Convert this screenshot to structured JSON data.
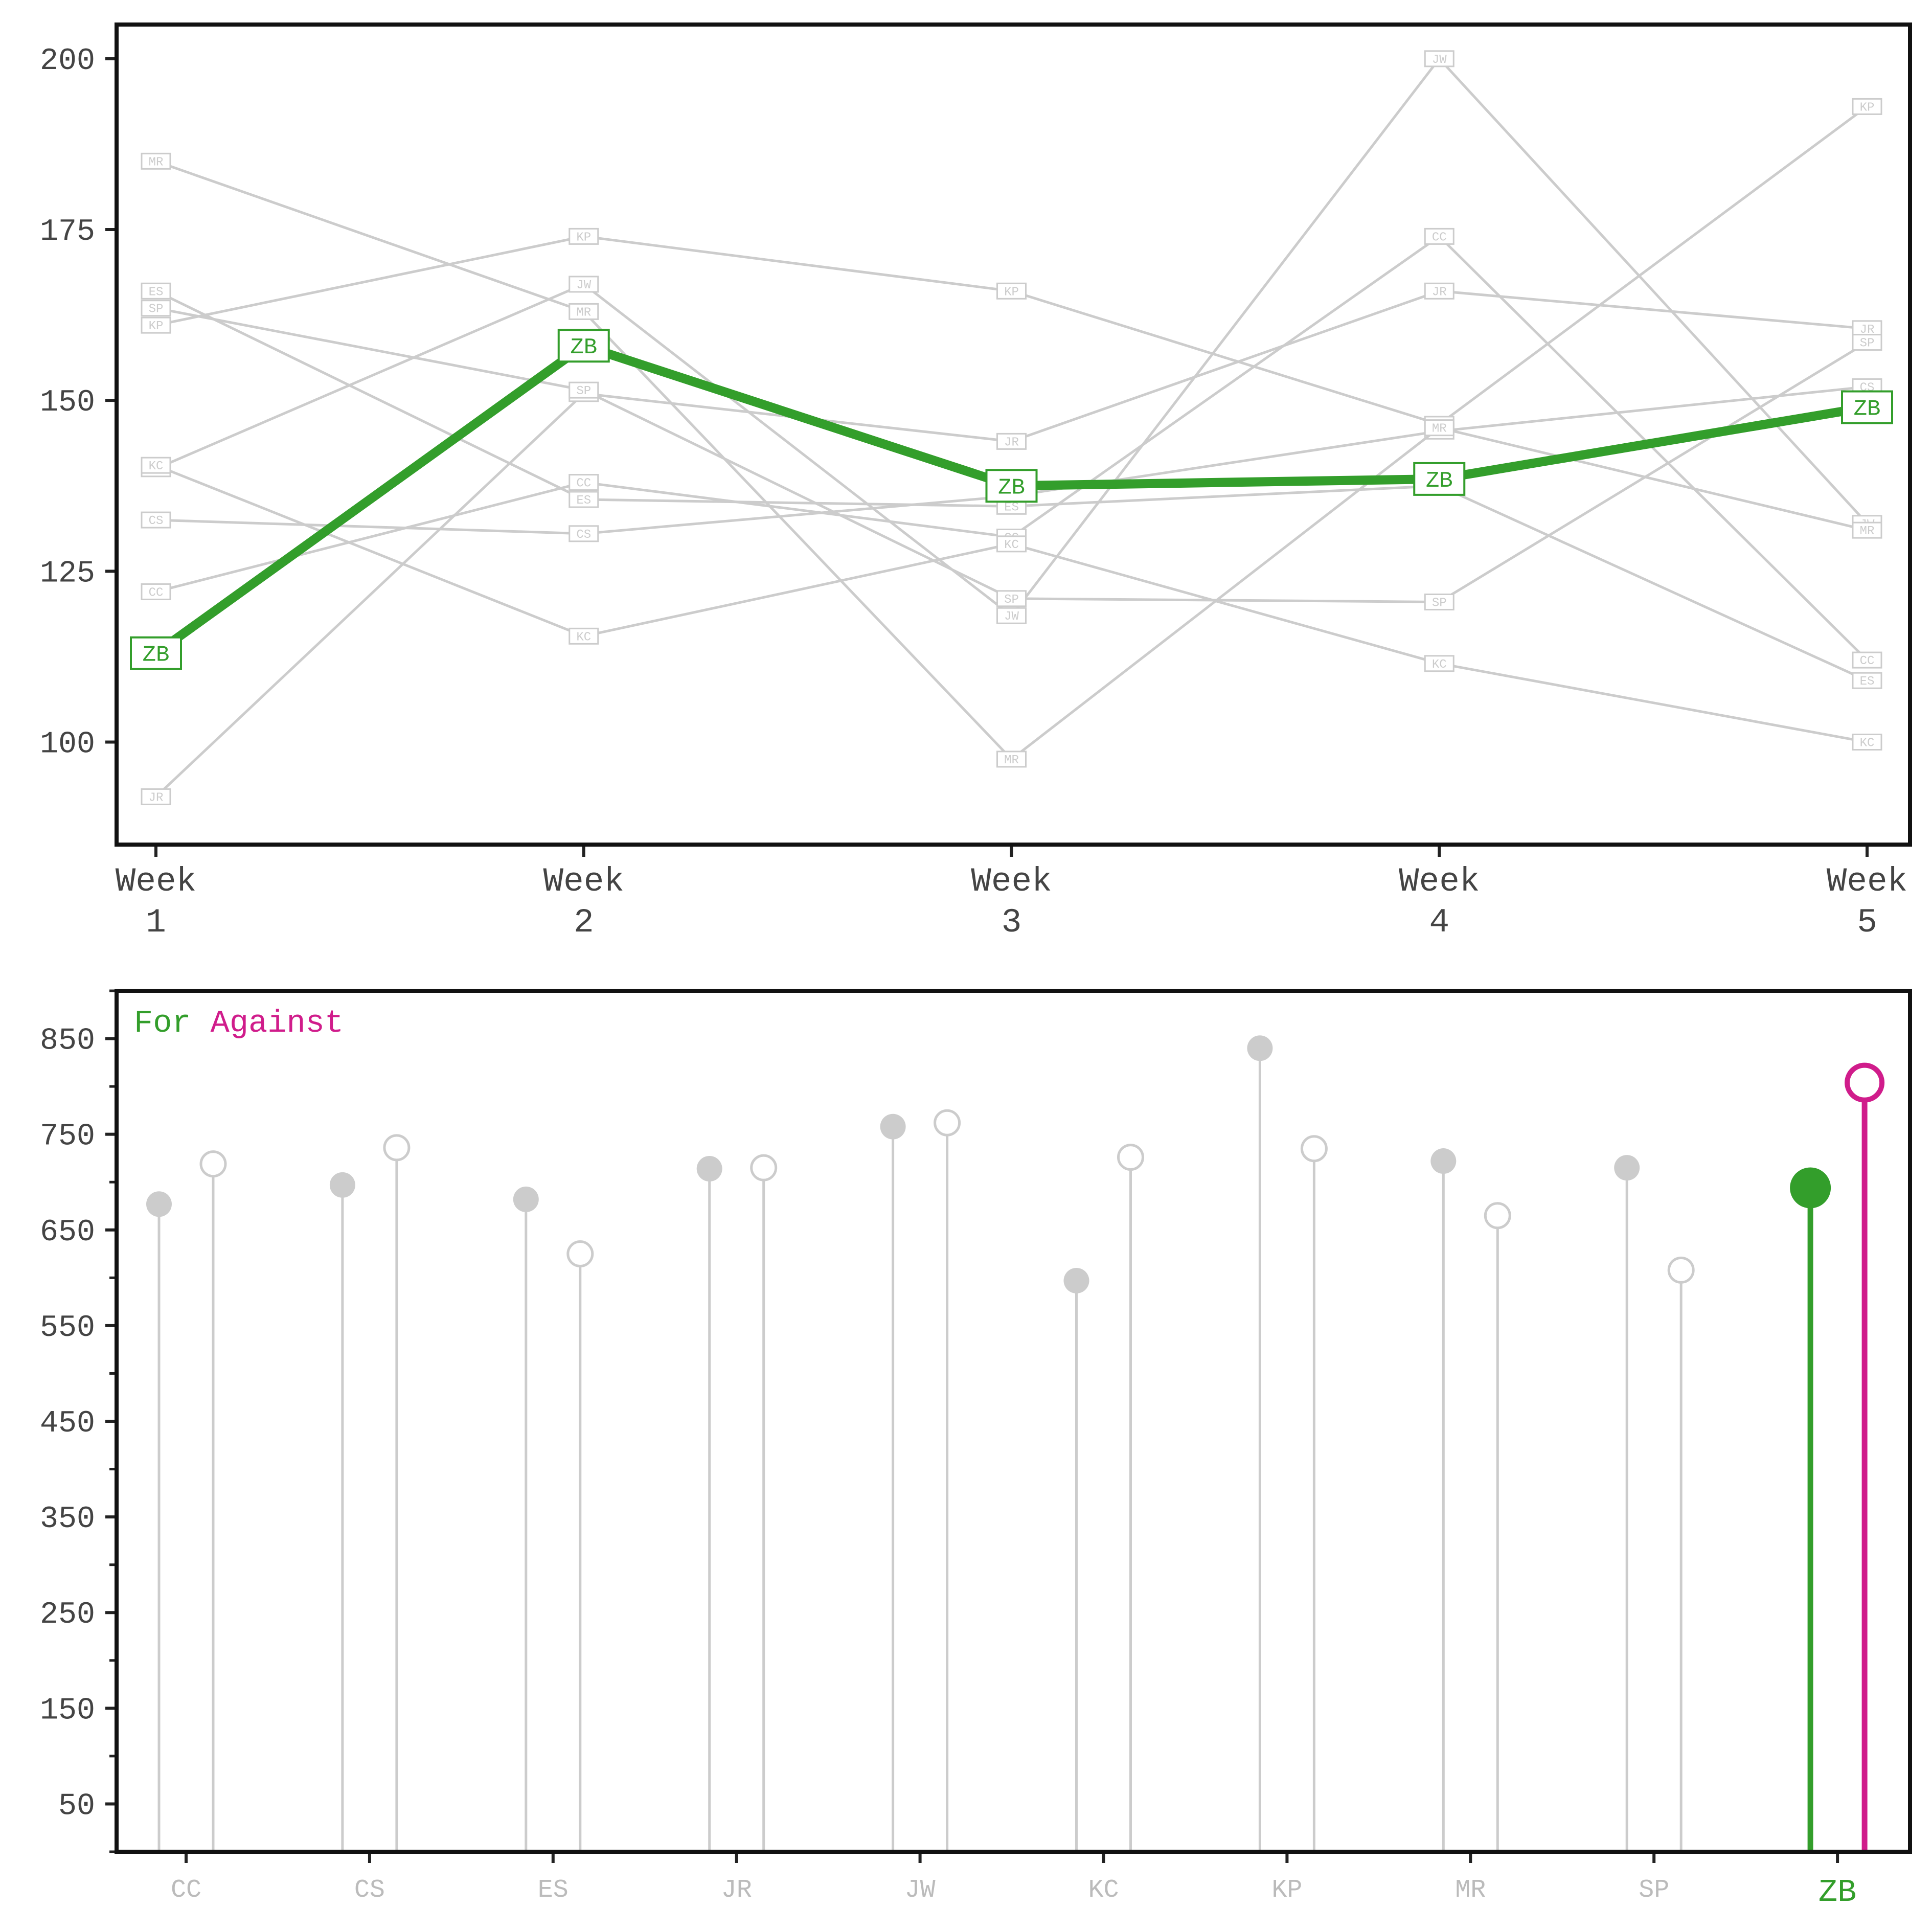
{
  "chart_data": [
    {
      "type": "line",
      "x": [
        "Week 1",
        "Week 2",
        "Week 3",
        "Week 4",
        "Week 5"
      ],
      "x_tick_lines": [
        [
          "Week",
          "1"
        ],
        [
          "Week",
          "2"
        ],
        [
          "Week",
          "3"
        ],
        [
          "Week",
          "4"
        ],
        [
          "Week",
          "5"
        ]
      ],
      "yticks": [
        100,
        125,
        150,
        175,
        200
      ],
      "ylim": [
        85,
        205
      ],
      "grid": false,
      "highlight": "ZB",
      "highlight_color": "#339e2b",
      "muted_color": "#cccccc",
      "series": [
        {
          "name": "CC",
          "values": [
            122,
            138,
            130,
            174,
            112
          ]
        },
        {
          "name": "CS",
          "values": [
            132.5,
            130.5,
            136,
            145.5,
            152
          ]
        },
        {
          "name": "ES",
          "values": [
            166,
            135.5,
            134.5,
            137.5,
            109
          ]
        },
        {
          "name": "JR",
          "values": [
            92,
            151,
            144,
            166,
            160.5
          ]
        },
        {
          "name": "JW",
          "values": [
            140,
            167,
            118.5,
            200,
            132
          ]
        },
        {
          "name": "KC",
          "values": [
            140.5,
            115.5,
            129,
            111.5,
            100
          ]
        },
        {
          "name": "KP",
          "values": [
            161,
            174,
            166,
            146.5,
            193
          ]
        },
        {
          "name": "MR",
          "values": [
            185,
            163,
            97.5,
            146,
            131
          ]
        },
        {
          "name": "SP",
          "values": [
            163.5,
            151.5,
            121,
            120.5,
            158.5
          ]
        },
        {
          "name": "ZB",
          "values": [
            113,
            158,
            137.5,
            138.5,
            149
          ]
        }
      ]
    },
    {
      "type": "lollipop",
      "categories": [
        "CC",
        "CS",
        "ES",
        "JR",
        "JW",
        "KC",
        "KP",
        "MR",
        "SP",
        "ZB"
      ],
      "yticks": [
        50,
        150,
        250,
        350,
        450,
        550,
        650,
        750,
        850
      ],
      "ylim": [
        0,
        900
      ],
      "legend": {
        "for_label": "For",
        "against_label": "Against",
        "placement": "top-left"
      },
      "for_color": "#339e2b",
      "against_color": "#d01c8b",
      "muted_color": "#cccccc",
      "highlight": "ZB",
      "series": [
        {
          "name": "For",
          "values": [
            677,
            697,
            682,
            714,
            758,
            597,
            840,
            722,
            715,
            694
          ]
        },
        {
          "name": "Against",
          "values": [
            719,
            736,
            625,
            715,
            762,
            726,
            735,
            665,
            608,
            804
          ]
        }
      ]
    }
  ]
}
